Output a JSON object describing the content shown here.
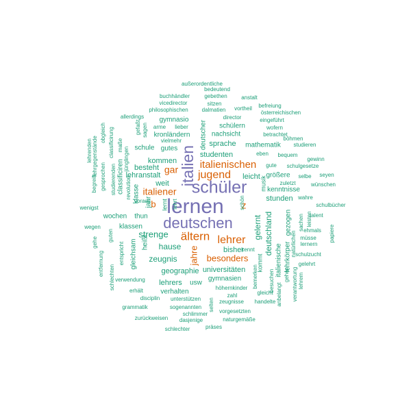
{
  "colors": {
    "purple": "#7570b3",
    "orange": "#d95f02",
    "green": "#1b9e77"
  },
  "words": [
    {
      "text": "lernen",
      "tier": "purple"
    },
    {
      "text": "deutschen",
      "tier": "purple"
    },
    {
      "text": "schüler",
      "tier": "purple"
    },
    {
      "text": "italien",
      "tier": "purple"
    },
    {
      "text": "italienischen",
      "tier": "orange"
    },
    {
      "text": "jugend",
      "tier": "orange"
    },
    {
      "text": "ältern",
      "tier": "orange"
    },
    {
      "text": "lehrer",
      "tier": "orange"
    },
    {
      "text": "italiener",
      "tier": "orange"
    },
    {
      "text": "gar",
      "tier": "orange"
    },
    {
      "text": "besonders",
      "tier": "orange"
    },
    {
      "text": "z",
      "tier": "orange"
    },
    {
      "text": "b",
      "tier": "orange"
    },
    {
      "text": "jahre",
      "tier": "orange"
    },
    {
      "text": "außerordentliche",
      "tier": "green"
    },
    {
      "text": "bedeutend",
      "tier": "green"
    },
    {
      "text": "buchhändler",
      "tier": "green"
    },
    {
      "text": "gebethen",
      "tier": "green"
    },
    {
      "text": "anstalt",
      "tier": "green"
    },
    {
      "text": "vicedirector",
      "tier": "green"
    },
    {
      "text": "sitzen",
      "tier": "green"
    },
    {
      "text": "befreiung",
      "tier": "green"
    },
    {
      "text": "philosophischen",
      "tier": "green"
    },
    {
      "text": "dalmatien",
      "tier": "green"
    },
    {
      "text": "vortheil",
      "tier": "green"
    },
    {
      "text": "österreichischen",
      "tier": "green"
    },
    {
      "text": "allerdings",
      "tier": "green"
    },
    {
      "text": "gymnasio",
      "tier": "green"
    },
    {
      "text": "director",
      "tier": "green"
    },
    {
      "text": "eingeführt",
      "tier": "green"
    },
    {
      "text": "schülern",
      "tier": "green"
    },
    {
      "text": "wofern",
      "tier": "green"
    },
    {
      "text": "lieber",
      "tier": "green"
    },
    {
      "text": "arme",
      "tier": "green"
    },
    {
      "text": "kronländern",
      "tier": "green"
    },
    {
      "text": "nachsicht",
      "tier": "green"
    },
    {
      "text": "betrachtet",
      "tier": "green"
    },
    {
      "text": "böhmen",
      "tier": "green"
    },
    {
      "text": "vielmehr",
      "tier": "green"
    },
    {
      "text": "sprache",
      "tier": "green"
    },
    {
      "text": "mathematik",
      "tier": "green"
    },
    {
      "text": "studieren",
      "tier": "green"
    },
    {
      "text": "schule",
      "tier": "green"
    },
    {
      "text": "gutes",
      "tier": "green"
    },
    {
      "text": "deutscher",
      "tier": "green"
    },
    {
      "text": "studenten",
      "tier": "green"
    },
    {
      "text": "eben",
      "tier": "green"
    },
    {
      "text": "bequem",
      "tier": "green"
    },
    {
      "text": "kommen",
      "tier": "green"
    },
    {
      "text": "gewinn",
      "tier": "green"
    },
    {
      "text": "gute",
      "tier": "green"
    },
    {
      "text": "schulgesetze",
      "tier": "green"
    },
    {
      "text": "besteht",
      "tier": "green"
    },
    {
      "text": "lehranstalt",
      "tier": "green"
    },
    {
      "text": "leicht",
      "tier": "green"
    },
    {
      "text": "größere",
      "tier": "green"
    },
    {
      "text": "seyen",
      "tier": "green"
    },
    {
      "text": "weit",
      "tier": "green"
    },
    {
      "text": "kenntnisse",
      "tier": "green"
    },
    {
      "text": "zuletzt",
      "tier": "green"
    },
    {
      "text": "wünschen",
      "tier": "green"
    },
    {
      "text": "voraus",
      "tier": "green"
    },
    {
      "text": "stunden",
      "tier": "green"
    },
    {
      "text": "wahre",
      "tier": "green"
    },
    {
      "text": "wenigst",
      "tier": "green"
    },
    {
      "text": "schulbücher",
      "tier": "green"
    },
    {
      "text": "wochen",
      "tier": "green"
    },
    {
      "text": "thun",
      "tier": "green"
    },
    {
      "text": "talent",
      "tier": "green"
    },
    {
      "text": "wegen",
      "tier": "green"
    },
    {
      "text": "klassen",
      "tier": "green"
    },
    {
      "text": "ehmals",
      "tier": "green"
    },
    {
      "text": "müsse",
      "tier": "green"
    },
    {
      "text": "strenge",
      "tier": "green"
    },
    {
      "text": "lernern",
      "tier": "green"
    },
    {
      "text": "hause",
      "tier": "green"
    },
    {
      "text": "bisher",
      "tier": "green"
    },
    {
      "text": "schulzucht",
      "tier": "green"
    },
    {
      "text": "zeugnis",
      "tier": "green"
    },
    {
      "text": "gelehrt",
      "tier": "green"
    },
    {
      "text": "geographie",
      "tier": "green"
    },
    {
      "text": "universitäten",
      "tier": "green"
    },
    {
      "text": "gymnasien",
      "tier": "green"
    },
    {
      "text": "lehrers",
      "tier": "green"
    },
    {
      "text": "usw",
      "tier": "green"
    },
    {
      "text": "verhalten",
      "tier": "green"
    },
    {
      "text": "verwendung",
      "tier": "green"
    },
    {
      "text": "höhernkinder",
      "tier": "green"
    },
    {
      "text": "erhält",
      "tier": "green"
    },
    {
      "text": "zahl",
      "tier": "green"
    },
    {
      "text": "gleicht",
      "tier": "green"
    },
    {
      "text": "disciplin",
      "tier": "green"
    },
    {
      "text": "unterstützen",
      "tier": "green"
    },
    {
      "text": "zeugnisse",
      "tier": "green"
    },
    {
      "text": "handelte",
      "tier": "green"
    },
    {
      "text": "grammatik",
      "tier": "green"
    },
    {
      "text": "sogenannten",
      "tier": "green"
    },
    {
      "text": "vorgesetzten",
      "tier": "green"
    },
    {
      "text": "schlimmer",
      "tier": "green"
    },
    {
      "text": "zurückweisen",
      "tier": "green"
    },
    {
      "text": "dasjenige",
      "tier": "green"
    },
    {
      "text": "naturgemäße",
      "tier": "green"
    },
    {
      "text": "schlechter",
      "tier": "green"
    },
    {
      "text": "präses",
      "tier": "green"
    },
    {
      "text": "lehrenden",
      "tier": "green"
    },
    {
      "text": "lehrgegenstände",
      "tier": "green"
    },
    {
      "text": "begreift",
      "tier": "green"
    },
    {
      "text": "gesprochen",
      "tier": "green"
    },
    {
      "text": "obgleich",
      "tier": "green"
    },
    {
      "text": "classificirung",
      "tier": "green"
    },
    {
      "text": "maße",
      "tier": "green"
    },
    {
      "text": "gefaßt",
      "tier": "green"
    },
    {
      "text": "sagen",
      "tier": "green"
    },
    {
      "text": "studierenden",
      "tier": "green"
    },
    {
      "text": "jünglingen",
      "tier": "green"
    },
    {
      "text": "classificiren",
      "tier": "green"
    },
    {
      "text": "revolution",
      "tier": "green"
    },
    {
      "text": "klasse",
      "tier": "green"
    },
    {
      "text": "jahr",
      "tier": "green"
    },
    {
      "text": "lernt",
      "tier": "green"
    },
    {
      "text": "lehrt",
      "tier": "green"
    },
    {
      "text": "gehe",
      "tier": "green"
    },
    {
      "text": "guten",
      "tier": "green"
    },
    {
      "text": "entspricht",
      "tier": "green"
    },
    {
      "text": "gleichsam",
      "tier": "green"
    },
    {
      "text": "heißt",
      "tier": "green"
    },
    {
      "text": "entfernung",
      "tier": "green"
    },
    {
      "text": "schlechten",
      "tier": "green"
    },
    {
      "text": "schön",
      "tier": "green"
    },
    {
      "text": "kennt",
      "tier": "green"
    },
    {
      "text": "selbe",
      "tier": "green"
    },
    {
      "text": "gelernt",
      "tier": "green"
    },
    {
      "text": "deutschland",
      "tier": "green"
    },
    {
      "text": "musik",
      "tier": "green"
    },
    {
      "text": "kommt",
      "tier": "green"
    },
    {
      "text": "italienische",
      "tier": "green"
    },
    {
      "text": "bemerken",
      "tier": "green"
    },
    {
      "text": "besuchen",
      "tier": "green"
    },
    {
      "text": "gezogen",
      "tier": "green"
    },
    {
      "text": "lehrkörper",
      "tier": "green"
    },
    {
      "text": "anbelangt",
      "tier": "green"
    },
    {
      "text": "gehen",
      "tier": "green"
    },
    {
      "text": "natürlichen",
      "tier": "green"
    },
    {
      "text": "verantwortung",
      "tier": "green"
    },
    {
      "text": "lehrem",
      "tier": "green"
    },
    {
      "text": "sachen",
      "tier": "green"
    },
    {
      "text": "leisten",
      "tier": "green"
    },
    {
      "text": "papiere",
      "tier": "green"
    },
    {
      "text": "selten",
      "tier": "green"
    }
  ]
}
